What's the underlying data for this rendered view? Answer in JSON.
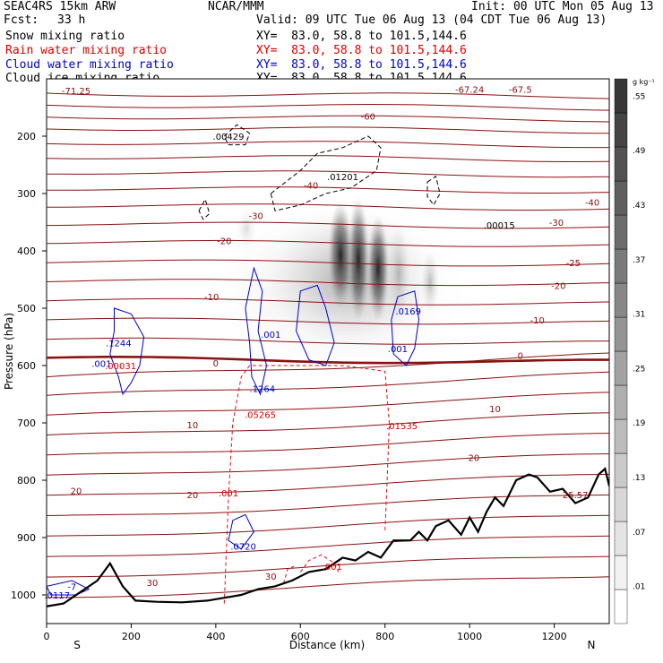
{
  "header": {
    "model": "SEAC4RS 15km ARW",
    "fcst_label": "Fcst:",
    "fcst_value": "33 h",
    "center": "NCAR/MMM",
    "init": "Init: 00 UTC Mon 05 Aug 13",
    "valid": "Valid: 09 UTC Tue 06 Aug 13 (04 CDT Tue 06 Aug 13)"
  },
  "fields": [
    {
      "name": "Snow mixing ratio",
      "xy": "XY=  83.0, 58.8 to 101.5,144.6",
      "color": "#000000"
    },
    {
      "name": "Rain water mixing ratio",
      "xy": "XY=  83.0, 58.8 to 101.5,144.6",
      "color": "#dd0000"
    },
    {
      "name": "Cloud water mixing ratio",
      "xy": "XY=  83.0, 58.8 to 101.5,144.6",
      "color": "#0000cc"
    },
    {
      "name": "Cloud ice mixing ratio",
      "xy": "XY=  83.0, 58.8 to 101.5,144.6",
      "color": "#000000"
    }
  ],
  "chart_data": {
    "type": "heatmap",
    "xlabel": "Distance (km)",
    "ylabel": "Pressure (hPa)",
    "xlim": [
      0,
      1330
    ],
    "ylim": [
      1050,
      100
    ],
    "x_ticks": [
      0,
      200,
      400,
      600,
      800,
      1000,
      1200
    ],
    "y_ticks": [
      200,
      300,
      400,
      500,
      600,
      700,
      800,
      900,
      1000
    ],
    "x_end_labels": {
      "left": "S",
      "right": "N"
    },
    "colorbar": {
      "unit": "g kg⁻¹",
      "ticks": [
        ".01",
        ".07",
        ".13",
        ".19",
        ".25",
        ".31",
        ".37",
        ".43",
        ".49",
        ".55"
      ],
      "levels": 16
    },
    "temperature_labels": [
      {
        "text": "-71.25",
        "x": 70,
        "p": 120
      },
      {
        "text": "-67.24",
        "x": 1000,
        "p": 118
      },
      {
        "text": "-67.5",
        "x": 1120,
        "p": 118
      },
      {
        "text": "-60",
        "x": 760,
        "p": 165
      },
      {
        "text": "-40",
        "x": 625,
        "p": 285
      },
      {
        "text": "-40",
        "x": 1290,
        "p": 315
      },
      {
        "text": "-30",
        "x": 495,
        "p": 338
      },
      {
        "text": "-30",
        "x": 1205,
        "p": 350
      },
      {
        "text": "-25",
        "x": 1245,
        "p": 420
      },
      {
        "text": "-20",
        "x": 420,
        "p": 382
      },
      {
        "text": "-20",
        "x": 1210,
        "p": 460
      },
      {
        "text": "-10",
        "x": 390,
        "p": 480
      },
      {
        "text": "-10",
        "x": 1160,
        "p": 520
      },
      {
        "text": "0",
        "x": 400,
        "p": 595
      },
      {
        "text": "0",
        "x": 1120,
        "p": 582
      },
      {
        "text": "10",
        "x": 345,
        "p": 703
      },
      {
        "text": "10",
        "x": 1060,
        "p": 675
      },
      {
        "text": "20",
        "x": 70,
        "p": 818
      },
      {
        "text": "20",
        "x": 345,
        "p": 825
      },
      {
        "text": "20",
        "x": 1010,
        "p": 760
      },
      {
        "text": "30",
        "x": 250,
        "p": 978
      },
      {
        "text": "30",
        "x": 530,
        "p": 967
      }
    ],
    "extrema_labels": [
      {
        "field": "ice",
        "text": ".00429",
        "x": 430,
        "p": 200
      },
      {
        "field": "ice",
        "text": ".01201",
        "x": 700,
        "p": 270
      },
      {
        "field": "ice",
        "text": ".00015",
        "x": 1070,
        "p": 355
      },
      {
        "field": "cloud",
        "text": ".1244",
        "x": 170,
        "p": 560
      },
      {
        "field": "cloud",
        "text": ".001",
        "x": 130,
        "p": 596
      },
      {
        "field": "rain",
        "text": ".00031",
        "x": 175,
        "p": 600
      },
      {
        "field": "cloud",
        "text": ".001",
        "x": 530,
        "p": 545
      },
      {
        "field": "cloud",
        "text": ".0169",
        "x": 855,
        "p": 505
      },
      {
        "field": "cloud",
        "text": ".001",
        "x": 830,
        "p": 570
      },
      {
        "field": "cloud",
        "text": ".1264",
        "x": 510,
        "p": 640
      },
      {
        "field": "rain",
        "text": ".05265",
        "x": 505,
        "p": 685
      },
      {
        "field": "rain",
        "text": ".01535",
        "x": 840,
        "p": 705
      },
      {
        "field": "rain",
        "text": ".001",
        "x": 430,
        "p": 822
      },
      {
        "field": "cloud",
        "text": ".0720",
        "x": 465,
        "p": 915
      },
      {
        "field": "rain",
        "text": ".001",
        "x": 675,
        "p": 950
      },
      {
        "field": "cloud",
        "text": ".0117",
        "x": 25,
        "p": 1000
      },
      {
        "field": "cloud",
        "text": "-7",
        "x": 60,
        "p": 985
      },
      {
        "field": "temp",
        "text": "25.57",
        "x": 1250,
        "p": 825
      }
    ],
    "terrain_p": [
      [
        0,
        1020
      ],
      [
        40,
        1015
      ],
      [
        80,
        995
      ],
      [
        120,
        975
      ],
      [
        150,
        945
      ],
      [
        180,
        985
      ],
      [
        210,
        1010
      ],
      [
        260,
        1012
      ],
      [
        320,
        1013
      ],
      [
        380,
        1010
      ],
      [
        420,
        1005
      ],
      [
        460,
        1000
      ],
      [
        500,
        990
      ],
      [
        540,
        985
      ],
      [
        580,
        975
      ],
      [
        620,
        960
      ],
      [
        660,
        955
      ],
      [
        700,
        935
      ],
      [
        730,
        940
      ],
      [
        760,
        925
      ],
      [
        790,
        935
      ],
      [
        820,
        905
      ],
      [
        860,
        905
      ],
      [
        880,
        890
      ],
      [
        900,
        905
      ],
      [
        920,
        880
      ],
      [
        950,
        870
      ],
      [
        980,
        895
      ],
      [
        1000,
        865
      ],
      [
        1020,
        890
      ],
      [
        1040,
        855
      ],
      [
        1060,
        830
      ],
      [
        1080,
        845
      ],
      [
        1110,
        800
      ],
      [
        1140,
        790
      ],
      [
        1160,
        795
      ],
      [
        1190,
        820
      ],
      [
        1220,
        815
      ],
      [
        1250,
        840
      ],
      [
        1280,
        830
      ],
      [
        1305,
        790
      ],
      [
        1320,
        780
      ],
      [
        1330,
        810
      ]
    ]
  }
}
